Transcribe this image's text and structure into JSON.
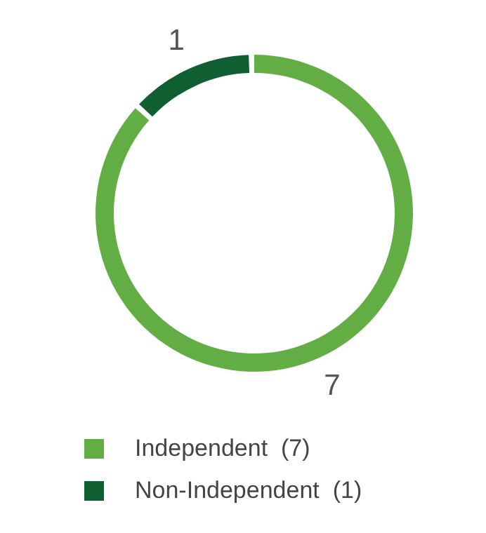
{
  "chart_data": {
    "type": "donut",
    "categories": [
      "Independent  (7)",
      "Non-Independent  (1)"
    ],
    "values": [
      7,
      1
    ],
    "colors": [
      "#62ae45",
      "#0f5f33"
    ],
    "data_labels": true,
    "legend": "bottom"
  }
}
